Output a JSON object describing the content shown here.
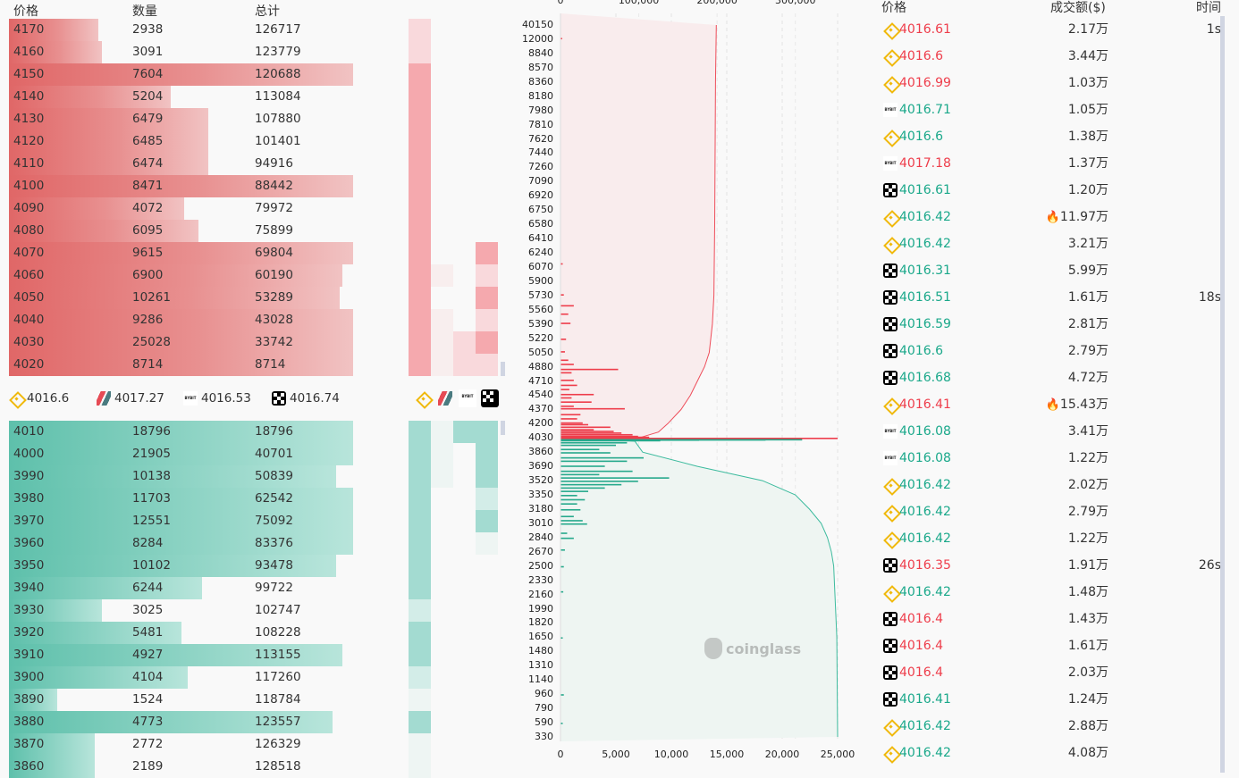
{
  "colors": {
    "ask": "#e06767",
    "bid": "#5ec0ab",
    "red_text": "#ee3d4b",
    "green_text": "#1aa88a",
    "binance": "#f0b90b"
  },
  "orderbook": {
    "headers": {
      "price": "价格",
      "qty": "数量",
      "total": "总计"
    },
    "asks": [
      {
        "price": "4170",
        "qty": "2938",
        "total": "126717",
        "fill": 0.26,
        "heat": [
          2,
          0,
          0,
          0
        ]
      },
      {
        "price": "4160",
        "qty": "3091",
        "total": "123779",
        "fill": 0.27,
        "heat": [
          2,
          0,
          0,
          0
        ]
      },
      {
        "price": "4150",
        "qty": "7604",
        "total": "120688",
        "fill": 1,
        "heat": [
          3,
          0,
          0,
          0
        ]
      },
      {
        "price": "4140",
        "qty": "5204",
        "total": "113084",
        "fill": 0.47,
        "heat": [
          3,
          0,
          0,
          0
        ]
      },
      {
        "price": "4130",
        "qty": "6479",
        "total": "107880",
        "fill": 0.58,
        "heat": [
          3,
          0,
          0,
          0
        ]
      },
      {
        "price": "4120",
        "qty": "6485",
        "total": "101401",
        "fill": 0.58,
        "heat": [
          3,
          0,
          0,
          0
        ]
      },
      {
        "price": "4110",
        "qty": "6474",
        "total": "94916",
        "fill": 0.58,
        "heat": [
          3,
          0,
          0,
          0
        ]
      },
      {
        "price": "4100",
        "qty": "8471",
        "total": "88442",
        "fill": 1,
        "heat": [
          3,
          0,
          0,
          0
        ]
      },
      {
        "price": "4090",
        "qty": "4072",
        "total": "79972",
        "fill": 0.51,
        "heat": [
          3,
          0,
          0,
          0
        ]
      },
      {
        "price": "4080",
        "qty": "6095",
        "total": "75899",
        "fill": 0.55,
        "heat": [
          3,
          0,
          0,
          0
        ]
      },
      {
        "price": "4070",
        "qty": "9615",
        "total": "69804",
        "fill": 1,
        "heat": [
          3,
          0,
          0,
          3
        ]
      },
      {
        "price": "4060",
        "qty": "6900",
        "total": "60190",
        "fill": 0.97,
        "heat": [
          3,
          1,
          0,
          2
        ]
      },
      {
        "price": "4050",
        "qty": "10261",
        "total": "53289",
        "fill": 0.96,
        "heat": [
          3,
          0,
          0,
          3
        ]
      },
      {
        "price": "4040",
        "qty": "9286",
        "total": "43028",
        "fill": 1,
        "heat": [
          3,
          1,
          0,
          2
        ]
      },
      {
        "price": "4030",
        "qty": "25028",
        "total": "33742",
        "fill": 1,
        "heat": [
          3,
          1,
          2,
          3
        ]
      },
      {
        "price": "4020",
        "qty": "8714",
        "total": "8714",
        "fill": 1,
        "heat": [
          3,
          1,
          2,
          2
        ]
      }
    ],
    "exchanges": [
      {
        "icon": "binance",
        "price": "4016.6"
      },
      {
        "icon": "slash",
        "price": "4017.27"
      },
      {
        "icon": "bybit",
        "price": "4016.53"
      },
      {
        "icon": "okx",
        "price": "4016.74"
      }
    ],
    "bybit_logo_text": "BYBIT",
    "bids": [
      {
        "price": "4010",
        "qty": "18796",
        "total": "18796",
        "fill": 1,
        "heat": [
          3,
          1,
          3,
          3
        ]
      },
      {
        "price": "4000",
        "qty": "21905",
        "total": "40701",
        "fill": 1,
        "heat": [
          3,
          1,
          0,
          3
        ]
      },
      {
        "price": "3990",
        "qty": "10138",
        "total": "50839",
        "fill": 0.95,
        "heat": [
          3,
          1,
          0,
          3
        ]
      },
      {
        "price": "3980",
        "qty": "11703",
        "total": "62542",
        "fill": 1,
        "heat": [
          3,
          0,
          0,
          2
        ]
      },
      {
        "price": "3970",
        "qty": "12551",
        "total": "75092",
        "fill": 1,
        "heat": [
          3,
          0,
          0,
          3
        ]
      },
      {
        "price": "3960",
        "qty": "8284",
        "total": "83376",
        "fill": 1,
        "heat": [
          3,
          0,
          0,
          1
        ]
      },
      {
        "price": "3950",
        "qty": "10102",
        "total": "93478",
        "fill": 0.95,
        "heat": [
          3,
          0,
          0,
          0
        ]
      },
      {
        "price": "3940",
        "qty": "6244",
        "total": "99722",
        "fill": 0.56,
        "heat": [
          3,
          0,
          0,
          0
        ]
      },
      {
        "price": "3930",
        "qty": "3025",
        "total": "102747",
        "fill": 0.27,
        "heat": [
          2,
          0,
          0,
          0
        ]
      },
      {
        "price": "3920",
        "qty": "5481",
        "total": "108228",
        "fill": 0.5,
        "heat": [
          3,
          0,
          0,
          0
        ]
      },
      {
        "price": "3910",
        "qty": "4927",
        "total": "113155",
        "fill": 0.97,
        "heat": [
          3,
          0,
          0,
          0
        ]
      },
      {
        "price": "3900",
        "qty": "4104",
        "total": "117260",
        "fill": 0.52,
        "heat": [
          2,
          0,
          0,
          0
        ]
      },
      {
        "price": "3890",
        "qty": "1524",
        "total": "118784",
        "fill": 0.14,
        "heat": [
          1,
          0,
          0,
          0
        ]
      },
      {
        "price": "3880",
        "qty": "4773",
        "total": "123557",
        "fill": 0.94,
        "heat": [
          3,
          0,
          0,
          0
        ]
      },
      {
        "price": "3870",
        "qty": "2772",
        "total": "126329",
        "fill": 0.25,
        "heat": [
          1,
          0,
          0,
          0
        ]
      },
      {
        "price": "3860",
        "qty": "2189",
        "total": "128518",
        "fill": 0.25,
        "heat": [
          1,
          0,
          0,
          0
        ]
      }
    ]
  },
  "chart_data": {
    "type": "bar",
    "orientation": "horizontal",
    "y_tick_labels": [
      "40150",
      "12000",
      "8840",
      "8570",
      "8360",
      "8180",
      "7980",
      "7810",
      "7620",
      "7440",
      "7260",
      "7090",
      "6920",
      "6750",
      "6580",
      "6410",
      "6240",
      "6070",
      "5900",
      "5730",
      "5560",
      "5390",
      "5220",
      "5050",
      "4880",
      "4710",
      "4540",
      "4370",
      "4200",
      "4030",
      "3860",
      "3690",
      "3520",
      "3350",
      "3180",
      "3010",
      "2840",
      "2670",
      "2500",
      "2330",
      "2160",
      "1990",
      "1820",
      "1650",
      "1480",
      "1310",
      "1140",
      "960",
      "790",
      "590",
      "330"
    ],
    "x_bottom_ticks": [
      "0",
      "5,000",
      "10,000",
      "15,000",
      "20,000",
      "25,000"
    ],
    "x_bottom_lim": [
      0,
      25000
    ],
    "x_top_ticks": [
      "0",
      "100,000",
      "200,000",
      "300,000"
    ],
    "x_top_lim": [
      0,
      354000
    ],
    "grid": "vertical dashed",
    "ask_bars": [
      [
        4016.7,
        25000
      ],
      [
        4030,
        8000
      ],
      [
        4040,
        7000
      ],
      [
        4060,
        6500
      ],
      [
        4080,
        5500
      ],
      [
        4100,
        4800
      ],
      [
        4120,
        3000
      ],
      [
        4150,
        4500
      ],
      [
        4180,
        2500
      ],
      [
        4200,
        2000
      ],
      [
        4250,
        1500
      ],
      [
        4300,
        1800
      ],
      [
        4370,
        5800
      ],
      [
        4400,
        1200
      ],
      [
        4450,
        2800
      ],
      [
        4500,
        1000
      ],
      [
        4540,
        3000
      ],
      [
        4600,
        800
      ],
      [
        4650,
        1500
      ],
      [
        4710,
        1200
      ],
      [
        4800,
        1000
      ],
      [
        4840,
        5200
      ],
      [
        4900,
        1200
      ],
      [
        4950,
        700
      ],
      [
        5050,
        400
      ],
      [
        5200,
        500
      ],
      [
        5390,
        900
      ],
      [
        5500,
        700
      ],
      [
        5600,
        1200
      ],
      [
        5730,
        300
      ],
      [
        6100,
        200
      ],
      [
        12000,
        150
      ]
    ],
    "bid_bars": [
      [
        4016.5,
        21800
      ],
      [
        4014,
        18500
      ],
      [
        4012,
        12500
      ],
      [
        4005,
        9000
      ],
      [
        3980,
        6000
      ],
      [
        3950,
        5000
      ],
      [
        3900,
        3500
      ],
      [
        3860,
        4500
      ],
      [
        3800,
        7500
      ],
      [
        3760,
        6000
      ],
      [
        3700,
        4000
      ],
      [
        3640,
        6500
      ],
      [
        3600,
        3500
      ],
      [
        3560,
        9800
      ],
      [
        3520,
        7000
      ],
      [
        3480,
        5500
      ],
      [
        3440,
        4000
      ],
      [
        3400,
        2500
      ],
      [
        3350,
        1500
      ],
      [
        3300,
        2200
      ],
      [
        3250,
        1500
      ],
      [
        3180,
        1800
      ],
      [
        3100,
        1200
      ],
      [
        3050,
        2000
      ],
      [
        3010,
        2400
      ],
      [
        2900,
        600
      ],
      [
        2840,
        1200
      ],
      [
        2700,
        400
      ],
      [
        2500,
        300
      ],
      [
        2200,
        250
      ],
      [
        1650,
        200
      ],
      [
        960,
        300
      ],
      [
        590,
        200
      ]
    ],
    "ask_cumulative": [
      [
        4016.7,
        0
      ],
      [
        4030,
        100000
      ],
      [
        4100,
        125000
      ],
      [
        4200,
        137000
      ],
      [
        4370,
        154000
      ],
      [
        4540,
        166000
      ],
      [
        4710,
        175000
      ],
      [
        4880,
        184000
      ],
      [
        5050,
        190000
      ],
      [
        5390,
        194000
      ],
      [
        5730,
        196000
      ],
      [
        6580,
        197000
      ],
      [
        8360,
        198000
      ],
      [
        40150,
        199000
      ]
    ],
    "bid_cumulative": [
      [
        4016.5,
        0
      ],
      [
        4012,
        60000
      ],
      [
        3990,
        95000
      ],
      [
        3860,
        105000
      ],
      [
        3690,
        175000
      ],
      [
        3520,
        258000
      ],
      [
        3350,
        300000
      ],
      [
        3180,
        318000
      ],
      [
        3010,
        333000
      ],
      [
        2840,
        341000
      ],
      [
        2670,
        346000
      ],
      [
        2500,
        349000
      ],
      [
        1650,
        353000
      ],
      [
        330,
        354000
      ]
    ]
  },
  "watermark": {
    "logo_text": "coinglass"
  },
  "trades": {
    "headers": {
      "price": "价格",
      "amount": "成交额($)",
      "time": "时间"
    },
    "rows": [
      {
        "ex": "binance",
        "price": "4016.61",
        "side": "red",
        "amount": "2.17万",
        "time": "1s"
      },
      {
        "ex": "binance",
        "price": "4016.6",
        "side": "red",
        "amount": "3.44万"
      },
      {
        "ex": "binance",
        "price": "4016.99",
        "side": "red",
        "amount": "1.03万"
      },
      {
        "ex": "bybit",
        "price": "4016.71",
        "side": "green",
        "amount": "1.05万"
      },
      {
        "ex": "binance",
        "price": "4016.6",
        "side": "green",
        "amount": "1.38万"
      },
      {
        "ex": "bybit",
        "price": "4017.18",
        "side": "red",
        "amount": "1.37万"
      },
      {
        "ex": "okx",
        "price": "4016.61",
        "side": "green",
        "amount": "1.20万"
      },
      {
        "ex": "binance",
        "price": "4016.42",
        "side": "green",
        "amount": "11.97万",
        "hot": true
      },
      {
        "ex": "binance",
        "price": "4016.42",
        "side": "green",
        "amount": "3.21万"
      },
      {
        "ex": "okx",
        "price": "4016.31",
        "side": "green",
        "amount": "5.99万"
      },
      {
        "ex": "okx",
        "price": "4016.51",
        "side": "green",
        "amount": "1.61万",
        "time": "18s"
      },
      {
        "ex": "okx",
        "price": "4016.59",
        "side": "green",
        "amount": "2.81万"
      },
      {
        "ex": "okx",
        "price": "4016.6",
        "side": "green",
        "amount": "2.79万"
      },
      {
        "ex": "okx",
        "price": "4016.68",
        "side": "green",
        "amount": "4.72万"
      },
      {
        "ex": "binance",
        "price": "4016.41",
        "side": "red",
        "amount": "15.43万",
        "hot": true
      },
      {
        "ex": "bybit",
        "price": "4016.08",
        "side": "green",
        "amount": "3.41万"
      },
      {
        "ex": "bybit",
        "price": "4016.08",
        "side": "green",
        "amount": "1.22万"
      },
      {
        "ex": "binance",
        "price": "4016.42",
        "side": "green",
        "amount": "2.02万"
      },
      {
        "ex": "binance",
        "price": "4016.42",
        "side": "green",
        "amount": "2.79万"
      },
      {
        "ex": "binance",
        "price": "4016.42",
        "side": "green",
        "amount": "1.22万"
      },
      {
        "ex": "okx",
        "price": "4016.35",
        "side": "red",
        "amount": "1.91万",
        "time": "26s"
      },
      {
        "ex": "binance",
        "price": "4016.42",
        "side": "green",
        "amount": "1.48万"
      },
      {
        "ex": "okx",
        "price": "4016.4",
        "side": "red",
        "amount": "1.43万"
      },
      {
        "ex": "okx",
        "price": "4016.4",
        "side": "red",
        "amount": "1.61万"
      },
      {
        "ex": "okx",
        "price": "4016.4",
        "side": "red",
        "amount": "2.03万"
      },
      {
        "ex": "okx",
        "price": "4016.41",
        "side": "green",
        "amount": "1.24万"
      },
      {
        "ex": "binance",
        "price": "4016.42",
        "side": "green",
        "amount": "2.88万"
      },
      {
        "ex": "binance",
        "price": "4016.42",
        "side": "green",
        "amount": "4.08万"
      }
    ]
  }
}
